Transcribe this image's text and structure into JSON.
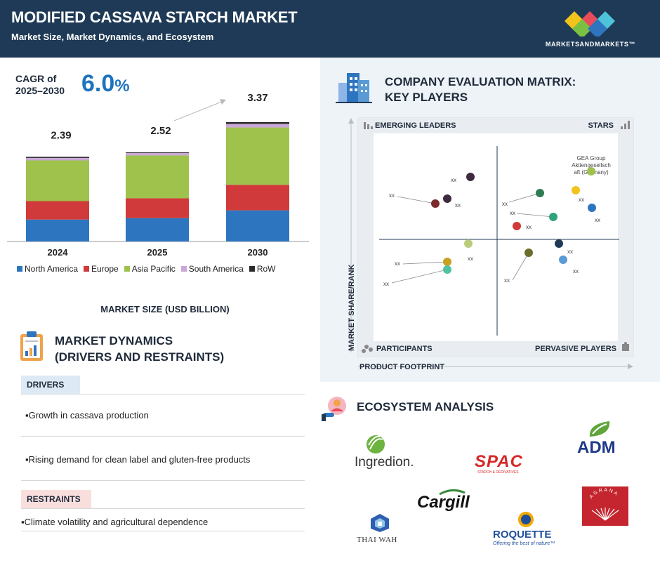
{
  "header": {
    "title": "MODIFIED CASSAVA STARCH MARKET",
    "subtitle": "Market Size, Market Dynamics, and Ecosystem",
    "brand": "MARKETSANDMARKETS™"
  },
  "cagr": {
    "label_line1": "CAGR of",
    "label_line2": "2025–2030",
    "value": "6.0",
    "unit": "%"
  },
  "chart_data": {
    "type": "bar",
    "stacked": true,
    "categories": [
      "2024",
      "2025",
      "2030"
    ],
    "totals": [
      "2.39",
      "2.52",
      "3.37"
    ],
    "series": [
      {
        "name": "North America",
        "values": [
          0.62,
          0.66,
          0.88
        ],
        "color": "#2e75c0"
      },
      {
        "name": "Europe",
        "values": [
          0.52,
          0.56,
          0.72
        ],
        "color": "#d13a3a"
      },
      {
        "name": "Asia Pacific",
        "values": [
          1.15,
          1.21,
          1.62
        ],
        "color": "#9ec24c"
      },
      {
        "name": "South America",
        "values": [
          0.07,
          0.07,
          0.1
        ],
        "color": "#c9a7d6"
      },
      {
        "name": "RoW",
        "values": [
          0.03,
          0.02,
          0.05
        ],
        "color": "#2b2b2b"
      }
    ],
    "xlabel": "MARKET SIZE (USD BILLION)",
    "legend": "bottom",
    "grid": false
  },
  "dynamics": {
    "title_line1": "MARKET DYNAMICS",
    "title_line2": "(DRIVERS AND RESTRAINTS)",
    "drivers_label": "DRIVERS",
    "drivers": [
      "▪Growth in cassava production",
      "▪Rising demand for clean label and gluten-free products"
    ],
    "restraints_label": "RESTRAINTS",
    "restraints": [
      "▪Climate volatility and agricultural dependence"
    ]
  },
  "matrix": {
    "title_line1": "COMPANY EVALUATION MATRIX:",
    "title_line2": "KEY PLAYERS",
    "quadrants": {
      "top_left": "EMERGING LEADERS",
      "top_right": "STARS",
      "bottom_left": "PARTICIPANTS",
      "bottom_right": "PERVASIVE PLAYERS"
    },
    "y_axis": "MARKET SHARE/RANK",
    "x_axis": "PRODUCT FOOTPRINT",
    "highlight_line1": "GEA Group",
    "highlight_line2": "Aktiengesellsch",
    "highlight_line3": "aft (Germany)",
    "point_label": "xx",
    "point_colors": [
      "#3d2a3f",
      "#7a2a2a",
      "#3d2a3f",
      "#2e7d52",
      "#f2c31b",
      "#9ec24c",
      "#2e75c0",
      "#2fa37a",
      "#d13a3a",
      "#b8cc7a",
      "#6a6e2a",
      "#1f3a56",
      "#5b9bd5",
      "#c9a020",
      "#4fc3a1"
    ]
  },
  "ecosystem": {
    "title": "ECOSYSTEM ANALYSIS",
    "logos": [
      "Ingredion.",
      "SPAC",
      "STARCH & DERIVATIVES",
      "ADM",
      "Cargill",
      "THAI WAH",
      "ROQUETTE",
      "Offering the best of nature™",
      "AGRANA"
    ]
  }
}
